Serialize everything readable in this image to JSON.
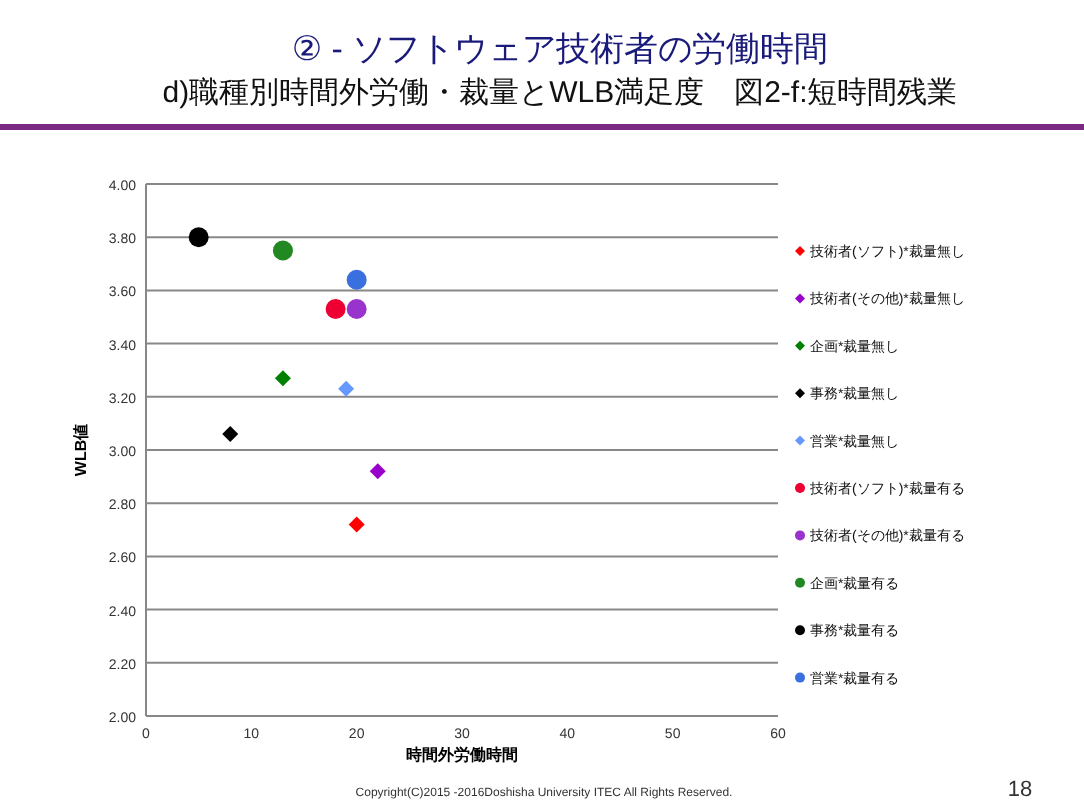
{
  "chart_data": {
    "type": "scatter",
    "title": "② - ソフトウェア技術者の労働時間",
    "subtitle": "d)職種別時間外労働・裁量とWLB満足度　図2-f:短時間残業",
    "xlabel": "時間外労働時間",
    "ylabel": "WLB値",
    "xlim": [
      0,
      60
    ],
    "xticks": [
      0,
      10,
      20,
      30,
      40,
      50,
      60
    ],
    "ylim": [
      2,
      4
    ],
    "yticks": [
      {
        "value": 2,
        "label": "2.00"
      },
      {
        "value": 2.2,
        "label": "2.20"
      },
      {
        "value": 2.4,
        "label": "2.40"
      },
      {
        "value": 2.6,
        "label": "2.60"
      },
      {
        "value": 2.8,
        "label": "2.80"
      },
      {
        "value": 3,
        "label": "3.00"
      },
      {
        "value": 3.2,
        "label": "3.20"
      },
      {
        "value": 3.4,
        "label": "3.40"
      },
      {
        "value": 3.6,
        "label": "3.60"
      },
      {
        "value": 3.8,
        "label": "3.80"
      },
      {
        "value": 4,
        "label": "4.00"
      }
    ],
    "grid": "y",
    "legend": "right",
    "series": [
      {
        "name": "技術者(ソフト)*裁量無し",
        "color": "#ff0000",
        "marker": "diamond",
        "x": [
          20
        ],
        "values": [
          2.72
        ]
      },
      {
        "name": "技術者(その他)*裁量無し",
        "color": "#9900cc",
        "marker": "diamond",
        "x": [
          22
        ],
        "values": [
          2.92
        ]
      },
      {
        "name": "企画*裁量無し",
        "color": "#008000",
        "marker": "diamond",
        "x": [
          13
        ],
        "values": [
          3.27
        ]
      },
      {
        "name": "事務*裁量無し",
        "color": "#000000",
        "marker": "diamond",
        "x": [
          8
        ],
        "values": [
          3.06
        ]
      },
      {
        "name": "営業*裁量無し",
        "color": "#6699ff",
        "marker": "diamond",
        "x": [
          19
        ],
        "values": [
          3.23
        ]
      },
      {
        "name": "技術者(ソフト)*裁量有る",
        "color": "#ee0033",
        "marker": "circle",
        "x": [
          18
        ],
        "values": [
          3.53
        ]
      },
      {
        "name": "技術者(その他)*裁量有る",
        "color": "#9933cc",
        "marker": "circle",
        "x": [
          20
        ],
        "values": [
          3.53
        ]
      },
      {
        "name": "企画*裁量有る",
        "color": "#228822",
        "marker": "circle",
        "x": [
          13
        ],
        "values": [
          3.75
        ]
      },
      {
        "name": "事務*裁量有る",
        "color": "#000000",
        "marker": "circle",
        "x": [
          5
        ],
        "values": [
          3.8
        ]
      },
      {
        "name": "営業*裁量有る",
        "color": "#3a6fe0",
        "marker": "circle",
        "x": [
          20
        ],
        "values": [
          3.64
        ]
      }
    ],
    "annotations": [
      "Copyright(C)2015 -2016Doshisha University ITEC All Rights Reserved.",
      "18"
    ]
  }
}
